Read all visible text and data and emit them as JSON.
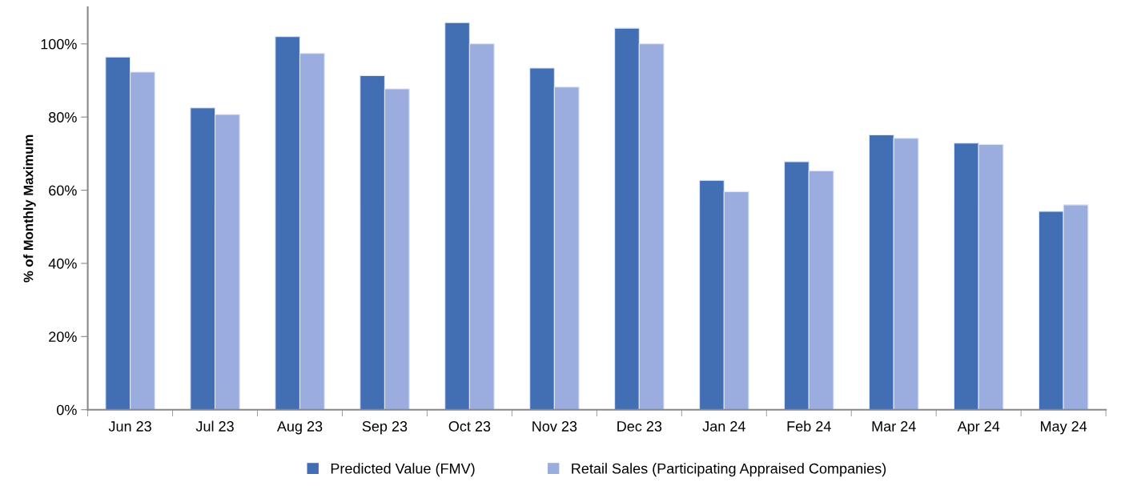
{
  "chart_data": {
    "type": "bar",
    "ylabel": "% of Monthly Maximum",
    "categories": [
      "Jun 23",
      "Jul 23",
      "Aug 23",
      "Sep 23",
      "Oct 23",
      "Nov 23",
      "Dec 23",
      "Jan 24",
      "Feb 24",
      "Mar 24",
      "Apr 24",
      "May 24"
    ],
    "series": [
      {
        "name": "Predicted Value (FMV)",
        "color": "#426eb4",
        "values": [
          96.4,
          82.5,
          102.0,
          91.3,
          105.8,
          93.4,
          104.3,
          62.7,
          67.8,
          75.1,
          72.9,
          54.2
        ]
      },
      {
        "name": "Retail Sales (Participating Appraised Companies)",
        "color": "#9badde",
        "values": [
          92.3,
          80.7,
          97.4,
          87.7,
          100.0,
          88.2,
          100.0,
          59.6,
          65.3,
          74.2,
          72.5,
          56.0
        ]
      }
    ],
    "ylim": [
      0,
      110
    ],
    "yticks": [
      {
        "value": 0,
        "label": "0%"
      },
      {
        "value": 20,
        "label": "20%"
      },
      {
        "value": 40,
        "label": "40%"
      },
      {
        "value": 60,
        "label": "60%"
      },
      {
        "value": 80,
        "label": "80%"
      },
      {
        "value": 100,
        "label": "100%"
      }
    ],
    "grid": false,
    "legend": "bottom"
  }
}
